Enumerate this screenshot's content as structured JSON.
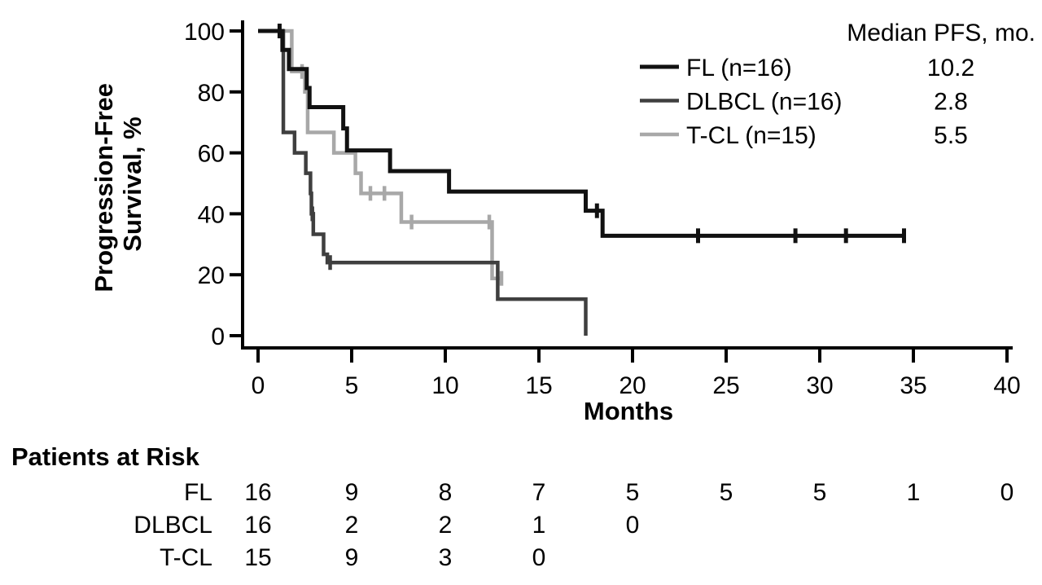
{
  "chart_data": {
    "type": "line",
    "subtype": "kaplan-meier-step",
    "title": "",
    "xlabel": "Months",
    "ylabel": "Progression-Free Survival, %",
    "ylabel_lines": [
      "Progression-Free",
      "Survival, %"
    ],
    "xlim": [
      0,
      40
    ],
    "ylim": [
      0,
      100
    ],
    "xticks": [
      0,
      5,
      10,
      15,
      20,
      25,
      30,
      35,
      40
    ],
    "yticks": [
      100,
      80,
      60,
      40,
      20,
      0
    ],
    "grid": false,
    "legend": {
      "position": "top-right",
      "median_header": "Median PFS, mo.",
      "entries": [
        {
          "label": "FL (n=16)",
          "median_pfs_mo": "10.2"
        },
        {
          "label": "DLBCL (n=16)",
          "median_pfs_mo": "2.8"
        },
        {
          "label": "T-CL (n=15)",
          "median_pfs_mo": "5.5"
        }
      ]
    },
    "series": [
      {
        "name": "FL",
        "color": "#111111",
        "line_width": 5,
        "start_value": 100,
        "steps": [
          [
            1.3,
            93.8
          ],
          [
            1.65,
            87.5
          ],
          [
            2.6,
            81.3
          ],
          [
            2.75,
            75
          ],
          [
            4.55,
            68
          ],
          [
            4.75,
            60.8
          ],
          [
            7.05,
            54
          ],
          [
            10.2,
            47.3
          ],
          [
            17.5,
            41
          ],
          [
            18.4,
            32.8
          ]
        ],
        "end_month": 34.5,
        "censors": [
          [
            1.15,
            100
          ],
          [
            18.1,
            41
          ],
          [
            23.5,
            32.8
          ],
          [
            28.7,
            32.8
          ],
          [
            31.4,
            32.8
          ],
          [
            34.5,
            32.8
          ]
        ]
      },
      {
        "name": "DLBCL",
        "color": "#3f3f3f",
        "line_width": 4.5,
        "start_value": 100,
        "steps": [
          [
            1.35,
            66.7
          ],
          [
            1.95,
            60
          ],
          [
            2.55,
            53.3
          ],
          [
            2.8,
            46.7
          ],
          [
            2.85,
            40
          ],
          [
            2.95,
            33.3
          ],
          [
            3.5,
            26.7
          ],
          [
            3.7,
            24
          ],
          [
            12.8,
            12
          ],
          [
            17.5,
            0
          ]
        ],
        "end_month": 17.5,
        "censors": [
          [
            2.9,
            40
          ],
          [
            3.85,
            24
          ]
        ]
      },
      {
        "name": "T-CL",
        "color": "#a8a8a8",
        "line_width": 4.5,
        "start_value": 100,
        "steps": [
          [
            1.8,
            86.7
          ],
          [
            2.5,
            80
          ],
          [
            2.65,
            66.7
          ],
          [
            4.05,
            60
          ],
          [
            5.2,
            53.3
          ],
          [
            5.5,
            46.7
          ],
          [
            7.65,
            37.3
          ],
          [
            12.5,
            18.8
          ]
        ],
        "end_month": 13.05,
        "censors": [
          [
            2.35,
            86.7
          ],
          [
            6.0,
            46.7
          ],
          [
            6.75,
            46.7
          ],
          [
            8.2,
            37.3
          ],
          [
            12.35,
            37.3
          ],
          [
            13.0,
            18.8
          ]
        ]
      }
    ],
    "at_risk": {
      "header": "Patients at Risk",
      "months": [
        0,
        5,
        10,
        15,
        20,
        25,
        30,
        35,
        40
      ],
      "rows": [
        {
          "label": "FL",
          "values": [
            16,
            9,
            8,
            7,
            5,
            5,
            5,
            1,
            0
          ]
        },
        {
          "label": "DLBCL",
          "values": [
            16,
            2,
            2,
            1,
            0
          ]
        },
        {
          "label": "T-CL",
          "values": [
            15,
            9,
            3,
            0
          ]
        }
      ]
    }
  }
}
